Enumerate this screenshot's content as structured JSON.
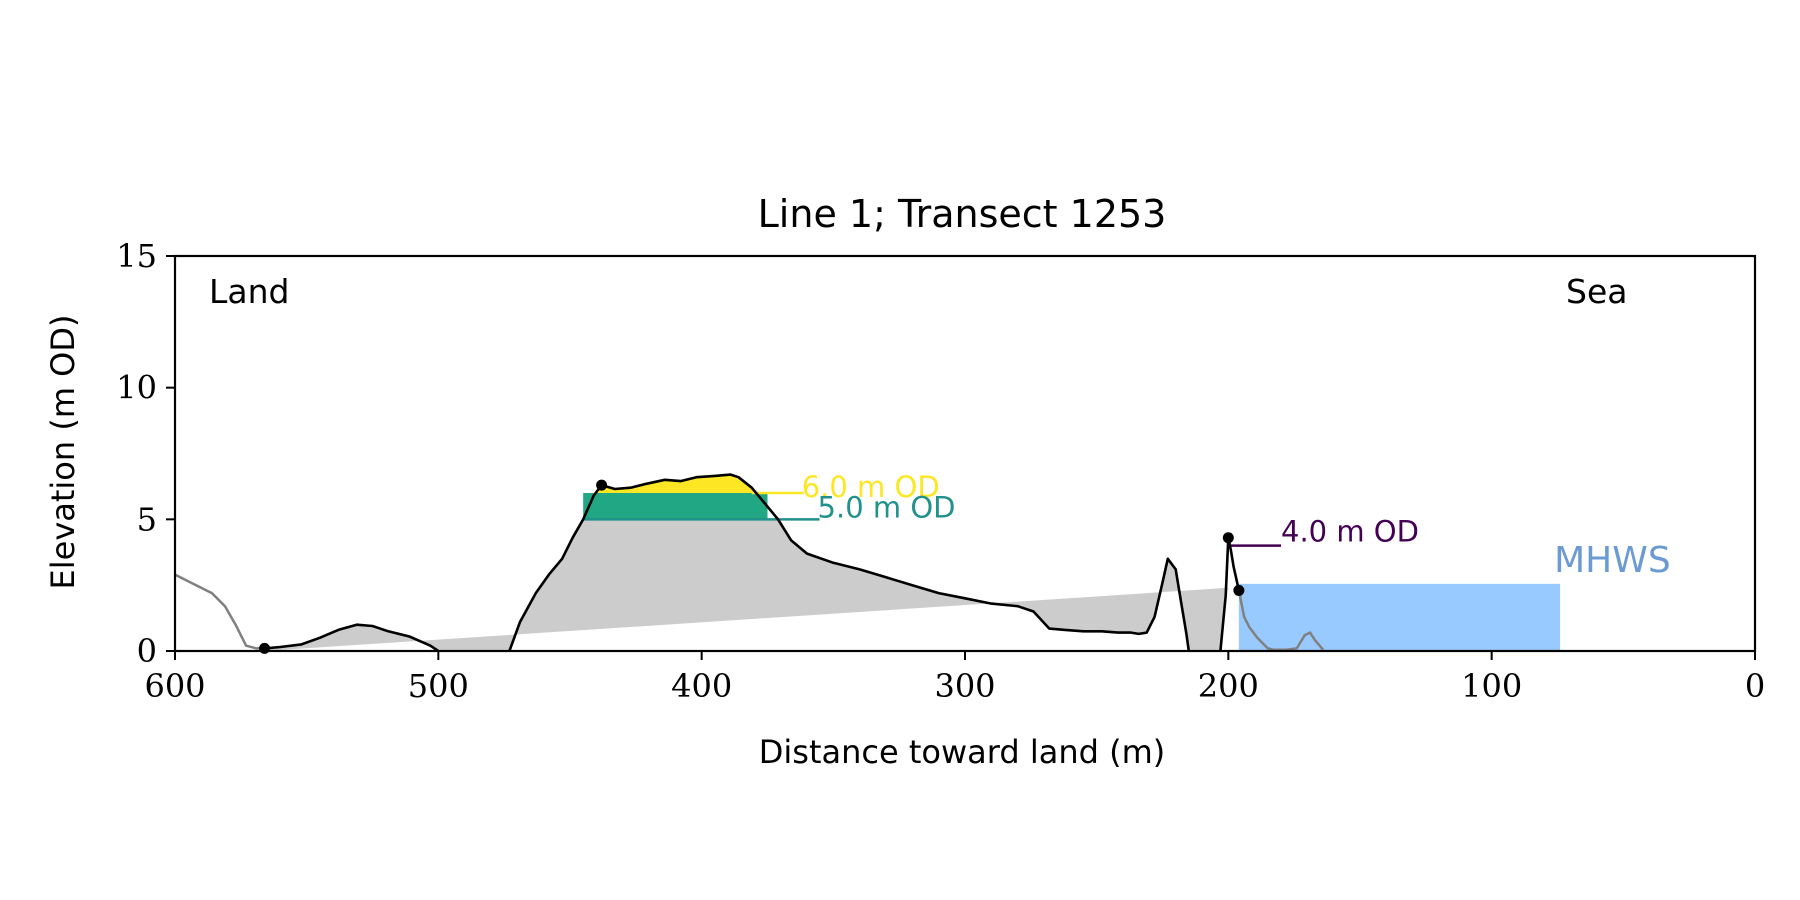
{
  "chart_data": {
    "type": "area",
    "title": "Line 1; Transect 1253",
    "xlabel": "Distance toward land (m)",
    "ylabel": "Elevation (m OD)",
    "xlim": [
      600,
      0
    ],
    "ylim": [
      0,
      15
    ],
    "x_ticks": [
      600,
      500,
      400,
      300,
      200,
      100,
      0
    ],
    "y_ticks": [
      0,
      5,
      10,
      15
    ],
    "grid": false,
    "corner_labels": {
      "left": "Land",
      "right": "Sea"
    },
    "profile_outer_color": "#808080",
    "profile_main_color": "#000000",
    "profile_outer_left": [
      [
        600,
        2.9
      ],
      [
        592,
        2.5
      ],
      [
        586,
        2.2
      ],
      [
        581,
        1.7
      ],
      [
        577,
        1.0
      ],
      [
        573,
        0.2
      ],
      [
        569,
        0.1
      ],
      [
        566,
        0.1
      ]
    ],
    "profile_main": [
      [
        566,
        0.1
      ],
      [
        560,
        0.15
      ],
      [
        552,
        0.25
      ],
      [
        545,
        0.5
      ],
      [
        538,
        0.8
      ],
      [
        531,
        1.0
      ],
      [
        525,
        0.95
      ],
      [
        519,
        0.75
      ],
      [
        511,
        0.55
      ],
      [
        503,
        0.2
      ],
      [
        500,
        0
      ],
      null,
      [
        473,
        0
      ],
      [
        469,
        1.1
      ],
      [
        463,
        2.2
      ],
      [
        458,
        2.9
      ],
      [
        453,
        3.5
      ],
      [
        449,
        4.3
      ],
      [
        445,
        5.0
      ],
      [
        441,
        5.9
      ],
      [
        438,
        6.3
      ],
      [
        433,
        6.15
      ],
      [
        427,
        6.2
      ],
      [
        421,
        6.35
      ],
      [
        414,
        6.5
      ],
      [
        408,
        6.45
      ],
      [
        402,
        6.6
      ],
      [
        395,
        6.65
      ],
      [
        389,
        6.7
      ],
      [
        386,
        6.6
      ],
      [
        381,
        6.2
      ],
      [
        376,
        5.6
      ],
      [
        371,
        5.0
      ],
      [
        366,
        4.2
      ],
      [
        360,
        3.7
      ],
      [
        350,
        3.35
      ],
      [
        340,
        3.1
      ],
      [
        330,
        2.8
      ],
      [
        320,
        2.5
      ],
      [
        310,
        2.2
      ],
      [
        300,
        2.0
      ],
      [
        290,
        1.8
      ],
      [
        280,
        1.7
      ],
      [
        274,
        1.5
      ],
      [
        268,
        0.85
      ],
      [
        262,
        0.8
      ],
      [
        255,
        0.75
      ],
      [
        248,
        0.75
      ],
      [
        242,
        0.7
      ],
      [
        237,
        0.7
      ],
      [
        234,
        0.65
      ],
      [
        231,
        0.7
      ],
      [
        228,
        1.3
      ],
      [
        225,
        2.6
      ],
      [
        223,
        3.5
      ],
      [
        220,
        3.1
      ],
      [
        218,
        1.9
      ],
      [
        216,
        0.7
      ],
      [
        215,
        0
      ],
      null,
      [
        203,
        0
      ],
      [
        201,
        2.1
      ],
      [
        200,
        4.3
      ],
      [
        199,
        3.8
      ],
      [
        198,
        3.2
      ],
      [
        196,
        2.3
      ]
    ],
    "profile_outer_right": [
      [
        196,
        2.3
      ],
      [
        194,
        1.3
      ],
      [
        192,
        0.9
      ],
      [
        189,
        0.5
      ],
      [
        185,
        0.1
      ],
      [
        183,
        0.05
      ],
      [
        178,
        0.05
      ],
      [
        174,
        0.1
      ],
      [
        171,
        0.6
      ],
      [
        169,
        0.7
      ],
      [
        167,
        0.4
      ],
      [
        164,
        0.05
      ]
    ],
    "fill_region": [
      [
        566,
        0
      ],
      [
        566,
        0.1
      ],
      [
        560,
        0.15
      ],
      [
        552,
        0.25
      ],
      [
        545,
        0.5
      ],
      [
        538,
        0.8
      ],
      [
        531,
        1.0
      ],
      [
        525,
        0.95
      ],
      [
        519,
        0.75
      ],
      [
        511,
        0.55
      ],
      [
        503,
        0.2
      ],
      [
        500,
        0
      ],
      [
        473,
        0
      ],
      [
        469,
        1.1
      ],
      [
        463,
        2.2
      ],
      [
        458,
        2.9
      ],
      [
        453,
        3.5
      ],
      [
        449,
        4.3
      ],
      [
        445,
        5.0
      ],
      [
        371,
        5.0
      ],
      [
        366,
        4.2
      ],
      [
        360,
        3.7
      ],
      [
        350,
        3.35
      ],
      [
        340,
        3.1
      ],
      [
        330,
        2.8
      ],
      [
        320,
        2.5
      ],
      [
        310,
        2.2
      ],
      [
        300,
        2.0
      ],
      [
        290,
        1.8
      ],
      [
        280,
        1.7
      ],
      [
        274,
        1.5
      ],
      [
        268,
        0.85
      ],
      [
        262,
        0.8
      ],
      [
        255,
        0.75
      ],
      [
        248,
        0.75
      ],
      [
        242,
        0.7
      ],
      [
        237,
        0.7
      ],
      [
        234,
        0.65
      ],
      [
        231,
        0.7
      ],
      [
        228,
        1.3
      ],
      [
        225,
        2.6
      ],
      [
        223,
        3.5
      ],
      [
        220,
        3.1
      ],
      [
        218,
        1.9
      ],
      [
        216,
        0.7
      ],
      [
        215,
        0
      ],
      [
        203,
        0
      ],
      [
        201,
        2.1
      ],
      [
        200,
        2.4
      ]
    ],
    "fill_color": "#cccccc",
    "bands": [
      {
        "label": "6.0 m OD",
        "bottom": 6.0,
        "color": "#fde725",
        "x_from": 441,
        "x_to": 381,
        "label_x": 362,
        "points": [
          [
            441,
            5.9
          ],
          [
            438,
            6.3
          ],
          [
            433,
            6.15
          ],
          [
            427,
            6.2
          ],
          [
            421,
            6.35
          ],
          [
            414,
            6.5
          ],
          [
            408,
            6.45
          ],
          [
            402,
            6.6
          ],
          [
            395,
            6.65
          ],
          [
            389,
            6.7
          ],
          [
            386,
            6.6
          ],
          [
            381,
            6.2
          ],
          [
            379,
            6.0
          ],
          [
            441,
            6.0
          ]
        ]
      },
      {
        "label": "5.0 m OD",
        "bottom": 5.0,
        "top": 6.0,
        "color": "#21a784",
        "line_color": "#21918c",
        "x_from": 445,
        "x_to": 375,
        "label_x": 356
      }
    ],
    "level_markers": [
      {
        "label": "4.0 m OD",
        "y": 4.0,
        "color": "#440154",
        "x_from": 199,
        "x_to": 180
      }
    ],
    "mhws": {
      "label": "MHWS",
      "level": 2.55,
      "x_from": 196,
      "x_to": 74,
      "fill_color": "#99caff",
      "label_color": "#6b9bd2"
    },
    "points": [
      [
        566,
        0.1
      ],
      [
        438,
        6.3
      ],
      [
        200,
        4.3
      ],
      [
        196,
        2.3
      ]
    ]
  }
}
